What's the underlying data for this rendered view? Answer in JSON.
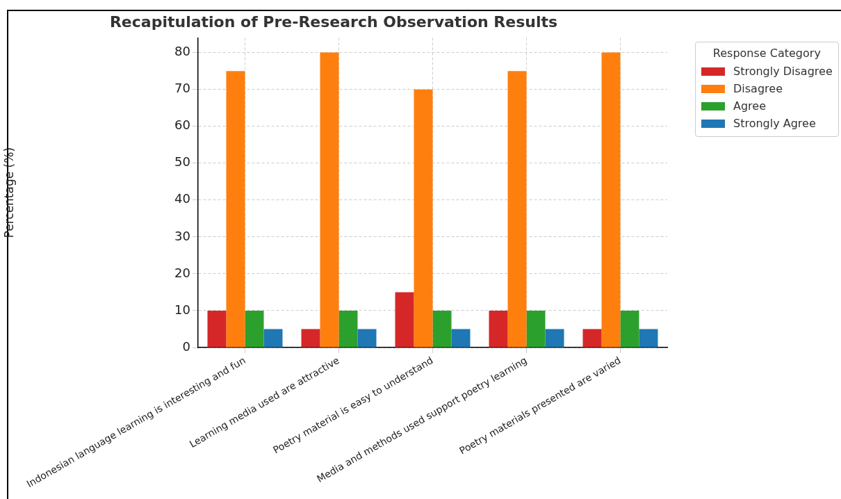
{
  "chart_data": {
    "type": "bar",
    "title": "Recapitulation of Pre-Research Observation Results",
    "ylabel": "Percentage (%)",
    "legend_title": "Response Category",
    "categories": [
      "Indonesian language learning is interesting and fun",
      "Learning media used are attractive",
      "Poetry material is easy to understand",
      "Media and methods used support poetry learning",
      "Poetry materials presented are varied"
    ],
    "series": [
      {
        "name": "Strongly Disagree",
        "color": "#d62728",
        "values": [
          10,
          5,
          15,
          10,
          5
        ]
      },
      {
        "name": "Disagree",
        "color": "#ff7f0e",
        "values": [
          75,
          80,
          70,
          75,
          80
        ]
      },
      {
        "name": "Agree",
        "color": "#2ca02c",
        "values": [
          10,
          10,
          10,
          10,
          10
        ]
      },
      {
        "name": "Strongly Agree",
        "color": "#1f77b4",
        "values": [
          5,
          5,
          5,
          5,
          5
        ]
      }
    ],
    "ylim": [
      0,
      84
    ],
    "yticks": [
      0,
      10,
      20,
      30,
      40,
      50,
      60,
      70,
      80
    ],
    "grid": true,
    "legend": "top right"
  }
}
